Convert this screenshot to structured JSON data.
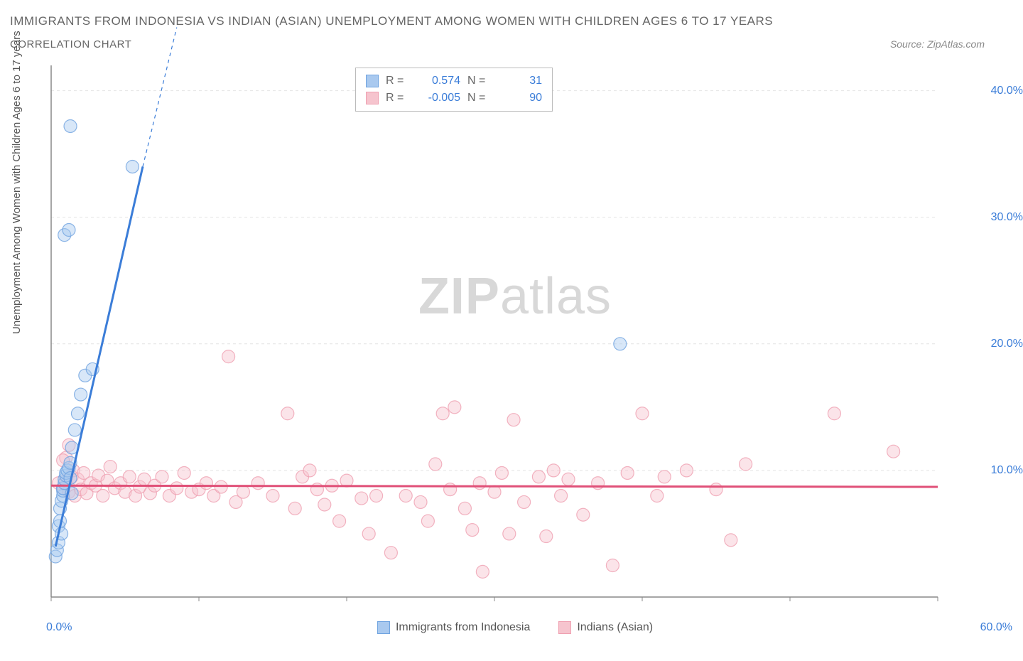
{
  "title_main": "IMMIGRANTS FROM INDONESIA VS INDIAN (ASIAN) UNEMPLOYMENT AMONG WOMEN WITH CHILDREN AGES 6 TO 17 YEARS",
  "title_sub": "CORRELATION CHART",
  "source": "Source: ZipAtlas.com",
  "y_axis_label": "Unemployment Among Women with Children Ages 6 to 17 years",
  "watermark_bold": "ZIP",
  "watermark_light": "atlas",
  "chart": {
    "type": "scatter",
    "xlim": [
      0,
      60
    ],
    "ylim": [
      0,
      42
    ],
    "x_ticks": [
      0,
      10,
      20,
      30,
      40,
      50,
      60
    ],
    "y_ticks": [
      10,
      20,
      30,
      40
    ],
    "x_tick_labels": {
      "first": "0.0%",
      "last": "60.0%"
    },
    "y_tick_labels": [
      "10.0%",
      "20.0%",
      "30.0%",
      "40.0%"
    ],
    "background_color": "#ffffff",
    "grid_color": "#e4e4e4",
    "axis_color": "#888888",
    "tick_label_color": "#3b7dd8",
    "marker_radius": 9,
    "marker_opacity": 0.45,
    "line_width_solid": 3,
    "line_width_dash": 1.2,
    "series": [
      {
        "name": "Immigrants from Indonesia",
        "color_fill": "#a9c9ef",
        "color_stroke": "#6fa3e0",
        "line_color": "#3b7dd8",
        "R": "0.574",
        "N": "31",
        "trend": {
          "x1": 0.3,
          "y1": 4,
          "x2": 6.2,
          "y2": 34,
          "dash_x2": 8.5,
          "dash_y2": 45
        },
        "points": [
          [
            0.3,
            3.2
          ],
          [
            0.4,
            3.7
          ],
          [
            0.5,
            4.3
          ],
          [
            0.5,
            5.6
          ],
          [
            0.6,
            6.0
          ],
          [
            0.6,
            7.0
          ],
          [
            0.7,
            7.6
          ],
          [
            0.8,
            8.0
          ],
          [
            0.8,
            8.4
          ],
          [
            0.8,
            8.6
          ],
          [
            0.9,
            9.0
          ],
          [
            0.9,
            9.3
          ],
          [
            1.0,
            9.6
          ],
          [
            1.0,
            9.8
          ],
          [
            1.1,
            10.0
          ],
          [
            1.2,
            10.2
          ],
          [
            1.3,
            10.6
          ],
          [
            1.3,
            9.4
          ],
          [
            1.4,
            8.2
          ],
          [
            1.4,
            11.8
          ],
          [
            1.6,
            13.2
          ],
          [
            1.8,
            14.5
          ],
          [
            2.0,
            16.0
          ],
          [
            2.3,
            17.5
          ],
          [
            2.8,
            18.0
          ],
          [
            0.9,
            28.6
          ],
          [
            1.2,
            29.0
          ],
          [
            1.3,
            37.2
          ],
          [
            5.5,
            34.0
          ],
          [
            38.5,
            20.0
          ],
          [
            0.7,
            5.0
          ]
        ]
      },
      {
        "name": "Indians (Asian)",
        "color_fill": "#f6c4ce",
        "color_stroke": "#efa0b1",
        "line_color": "#e05078",
        "R": "-0.005",
        "N": "90",
        "trend": {
          "x1": 0,
          "y1": 8.8,
          "x2": 60,
          "y2": 8.7
        },
        "points": [
          [
            0.5,
            9.0
          ],
          [
            0.8,
            8.6
          ],
          [
            1.0,
            9.2
          ],
          [
            1.2,
            8.3
          ],
          [
            1.4,
            9.5
          ],
          [
            1.5,
            10.0
          ],
          [
            1.6,
            8.0
          ],
          [
            1.8,
            9.3
          ],
          [
            2.0,
            8.5
          ],
          [
            2.2,
            9.8
          ],
          [
            2.4,
            8.2
          ],
          [
            2.7,
            9.0
          ],
          [
            3.0,
            8.8
          ],
          [
            3.2,
            9.6
          ],
          [
            3.5,
            8.0
          ],
          [
            3.8,
            9.2
          ],
          [
            4.0,
            10.3
          ],
          [
            4.3,
            8.6
          ],
          [
            4.7,
            9.0
          ],
          [
            5.0,
            8.3
          ],
          [
            5.3,
            9.5
          ],
          [
            5.7,
            8.0
          ],
          [
            6.0,
            8.7
          ],
          [
            6.3,
            9.3
          ],
          [
            6.7,
            8.2
          ],
          [
            7.0,
            8.8
          ],
          [
            7.5,
            9.5
          ],
          [
            8.0,
            8.0
          ],
          [
            8.5,
            8.6
          ],
          [
            9.0,
            9.8
          ],
          [
            9.5,
            8.3
          ],
          [
            10.0,
            8.5
          ],
          [
            10.5,
            9.0
          ],
          [
            11.0,
            8.0
          ],
          [
            11.5,
            8.7
          ],
          [
            12.0,
            19.0
          ],
          [
            12.5,
            7.5
          ],
          [
            13.0,
            8.3
          ],
          [
            14.0,
            9.0
          ],
          [
            15.0,
            8.0
          ],
          [
            16.0,
            14.5
          ],
          [
            16.5,
            7.0
          ],
          [
            17.0,
            9.5
          ],
          [
            17.5,
            10.0
          ],
          [
            18.0,
            8.5
          ],
          [
            18.5,
            7.3
          ],
          [
            19.0,
            8.8
          ],
          [
            19.5,
            6.0
          ],
          [
            20.0,
            9.2
          ],
          [
            21.0,
            7.8
          ],
          [
            21.5,
            5.0
          ],
          [
            22.0,
            8.0
          ],
          [
            23.0,
            3.5
          ],
          [
            24.0,
            8.0
          ],
          [
            25.0,
            7.5
          ],
          [
            25.5,
            6.0
          ],
          [
            26.0,
            10.5
          ],
          [
            26.5,
            14.5
          ],
          [
            27.0,
            8.5
          ],
          [
            27.3,
            15.0
          ],
          [
            28.0,
            7.0
          ],
          [
            28.5,
            5.3
          ],
          [
            29.0,
            9.0
          ],
          [
            29.2,
            2.0
          ],
          [
            30.0,
            8.3
          ],
          [
            30.5,
            9.8
          ],
          [
            31.0,
            5.0
          ],
          [
            31.3,
            14.0
          ],
          [
            32.0,
            7.5
          ],
          [
            33.0,
            9.5
          ],
          [
            33.5,
            4.8
          ],
          [
            34.0,
            10.0
          ],
          [
            34.5,
            8.0
          ],
          [
            35.0,
            9.3
          ],
          [
            36.0,
            6.5
          ],
          [
            37.0,
            9.0
          ],
          [
            38.0,
            2.5
          ],
          [
            39.0,
            9.8
          ],
          [
            40.0,
            14.5
          ],
          [
            41.0,
            8.0
          ],
          [
            41.5,
            9.5
          ],
          [
            43.0,
            10.0
          ],
          [
            45.0,
            8.5
          ],
          [
            46.0,
            4.5
          ],
          [
            47.0,
            10.5
          ],
          [
            53.0,
            14.5
          ],
          [
            57.0,
            11.5
          ],
          [
            1.0,
            11.0
          ],
          [
            1.2,
            12.0
          ],
          [
            0.8,
            10.8
          ]
        ]
      }
    ]
  },
  "legend_top": {
    "r_label": "R =",
    "n_label": "N ="
  },
  "legend_bottom": [
    {
      "swatch_fill": "#a9c9ef",
      "swatch_stroke": "#6fa3e0",
      "label": "Immigrants from Indonesia"
    },
    {
      "swatch_fill": "#f6c4ce",
      "swatch_stroke": "#efa0b1",
      "label": "Indians (Asian)"
    }
  ]
}
